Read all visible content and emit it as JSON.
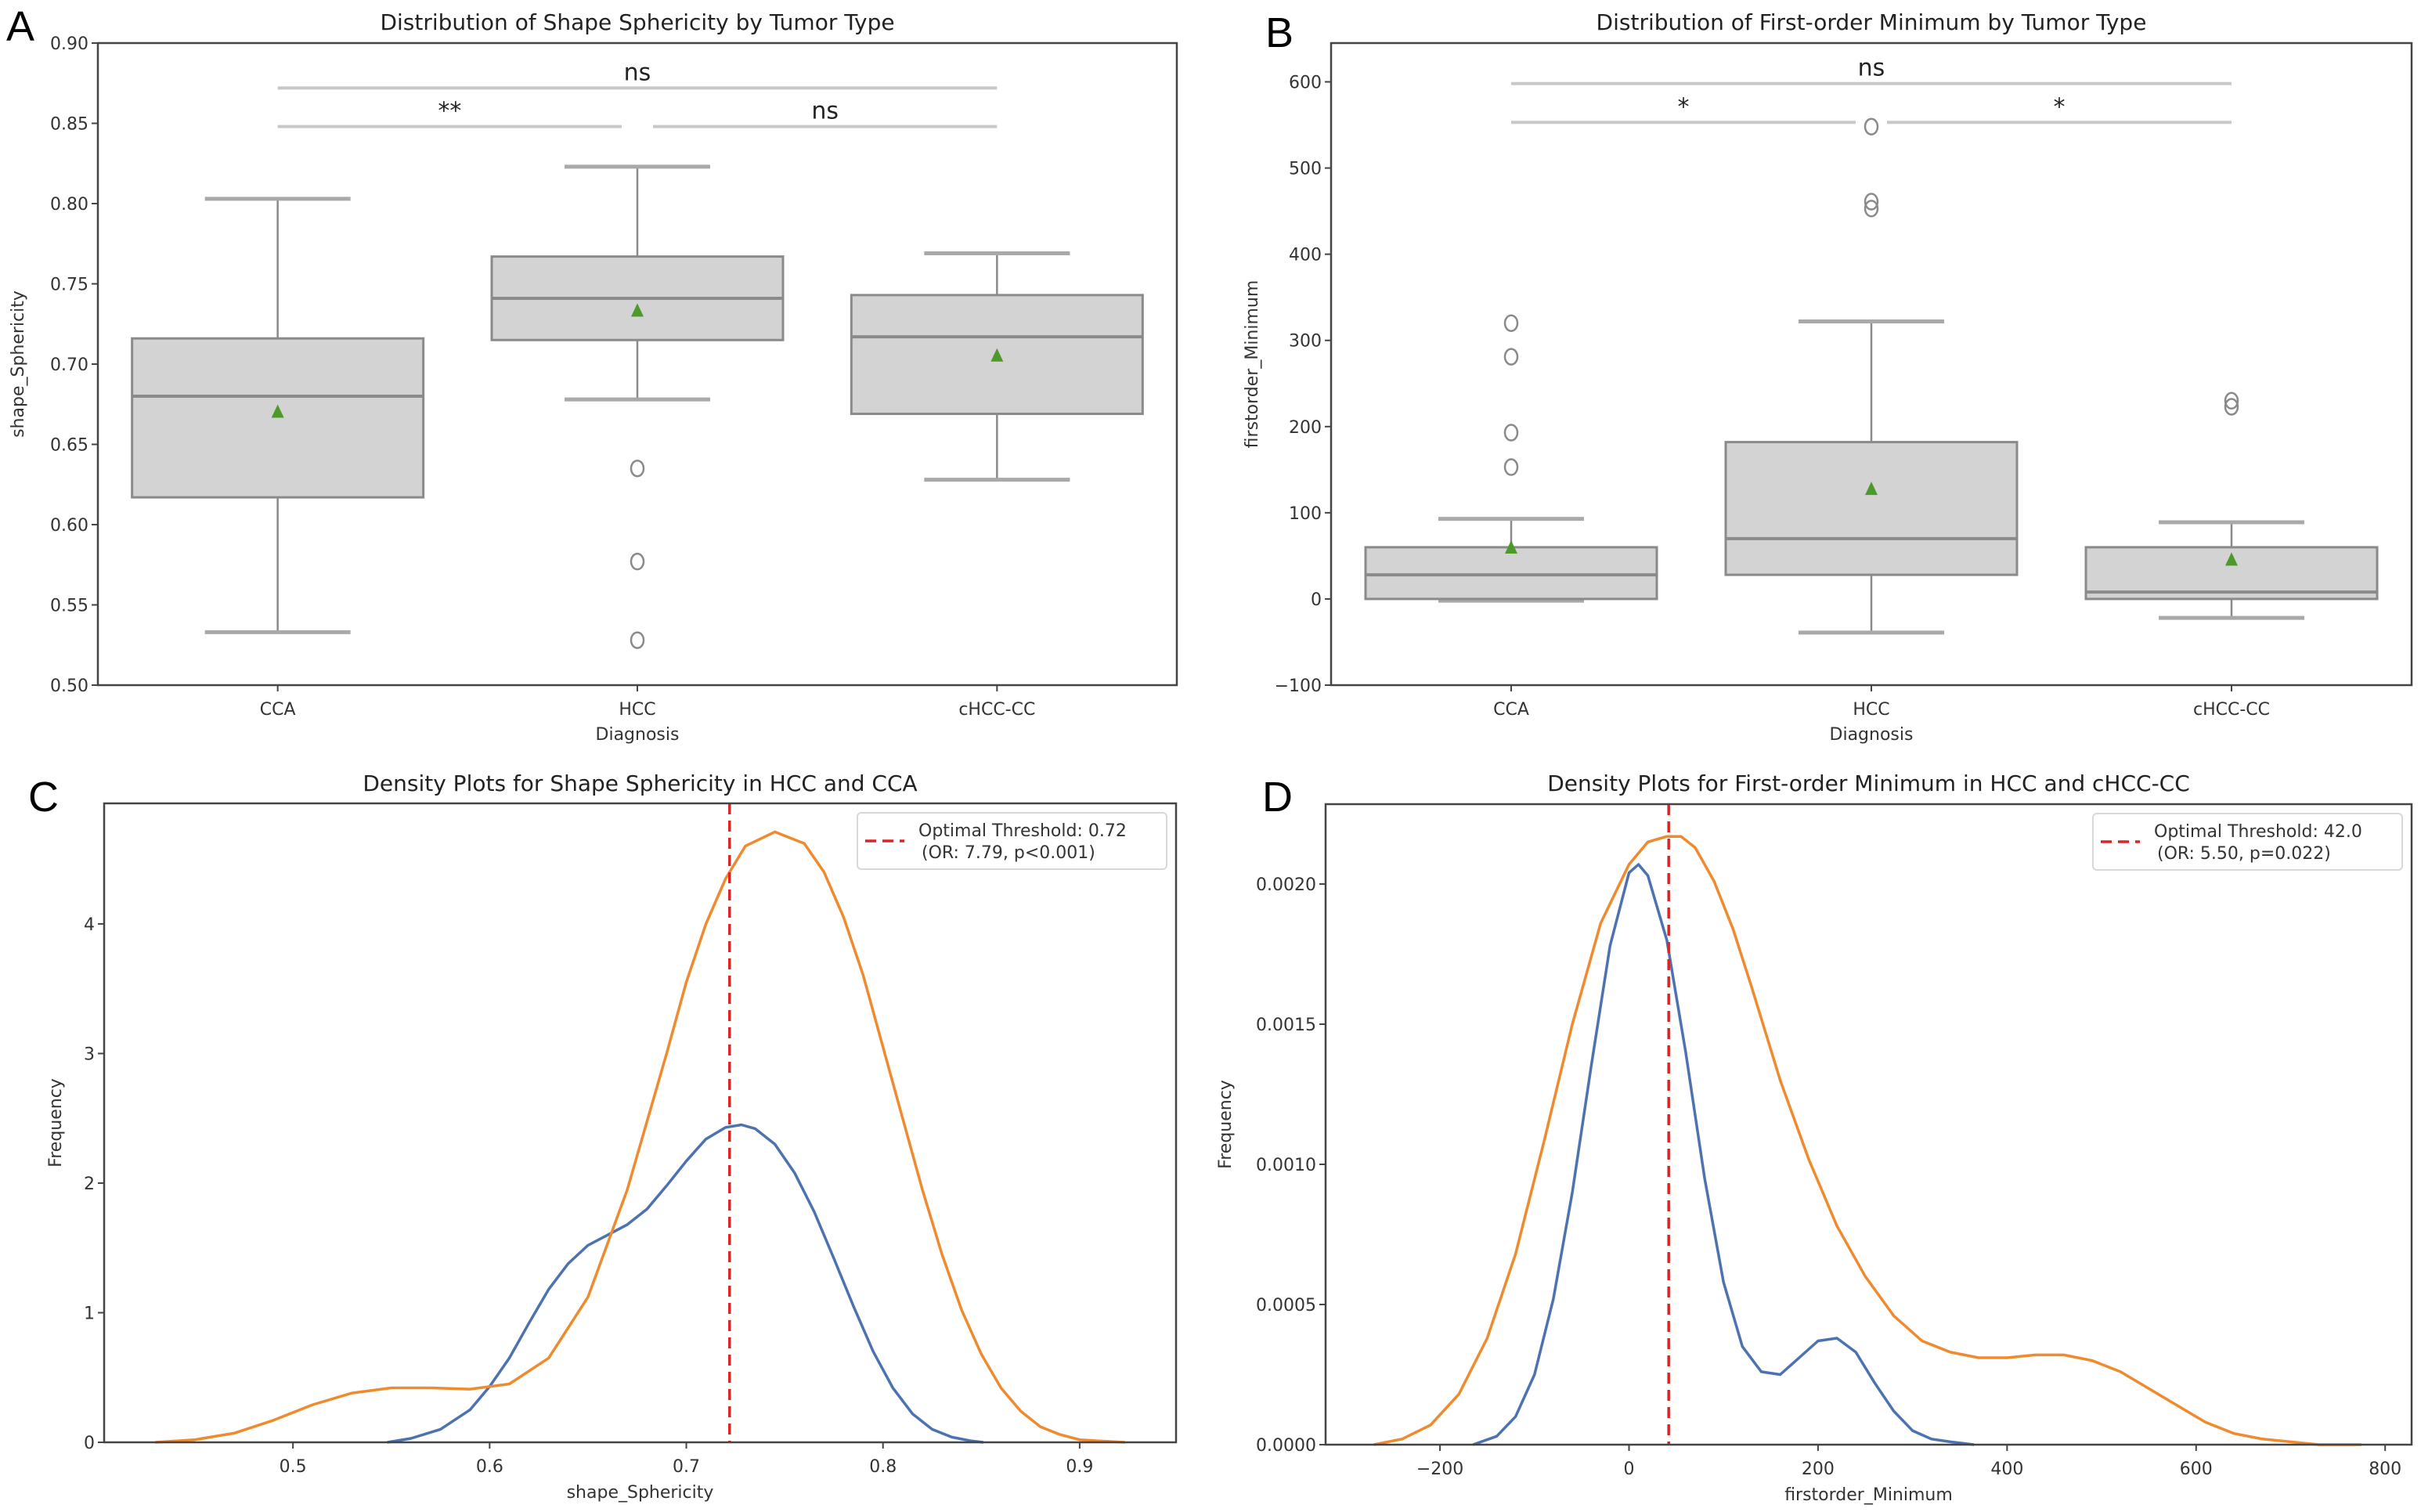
{
  "figure": {
    "panels": [
      {
        "letter": "A"
      },
      {
        "letter": "B"
      },
      {
        "letter": "C"
      },
      {
        "letter": "D"
      }
    ]
  },
  "chart_data": [
    {
      "type": "box",
      "panel": "A",
      "title": "Distribution of Shape Sphericity by Tumor Type",
      "xlabel": "Diagnosis",
      "ylabel": "shape_Sphericity",
      "ylim": [
        0.5,
        0.9
      ],
      "yticks": [
        0.5,
        0.55,
        0.6,
        0.65,
        0.7,
        0.75,
        0.8,
        0.85,
        0.9
      ],
      "ytick_labels": [
        "0.50",
        "0.55",
        "0.60",
        "0.65",
        "0.70",
        "0.75",
        "0.80",
        "0.85",
        "0.90"
      ],
      "categories": [
        "CCA",
        "HCC",
        "cHCC-CC"
      ],
      "boxes": [
        {
          "category": "CCA",
          "whisker_low": 0.533,
          "q1": 0.617,
          "median": 0.68,
          "q3": 0.716,
          "whisker_high": 0.803,
          "mean": 0.67,
          "outliers": []
        },
        {
          "category": "HCC",
          "whisker_low": 0.678,
          "q1": 0.715,
          "median": 0.741,
          "q3": 0.767,
          "whisker_high": 0.823,
          "mean": 0.733,
          "outliers": [
            0.635,
            0.577,
            0.528
          ]
        },
        {
          "category": "cHCC-CC",
          "whisker_low": 0.628,
          "q1": 0.669,
          "median": 0.717,
          "q3": 0.743,
          "whisker_high": 0.769,
          "mean": 0.705,
          "outliers": []
        }
      ],
      "significance": [
        {
          "from": "CCA",
          "to": "HCC",
          "level": 0.848,
          "label": "**"
        },
        {
          "from": "HCC",
          "to": "cHCC-CC",
          "level": 0.848,
          "label": "ns"
        },
        {
          "from": "CCA",
          "to": "cHCC-CC",
          "level": 0.872,
          "label": "ns"
        }
      ],
      "grid": false
    },
    {
      "type": "box",
      "panel": "B",
      "title": "Distribution of First-order Minimum by Tumor Type",
      "xlabel": "Diagnosis",
      "ylabel": "firstorder_Minimum",
      "ylim": [
        -100,
        645
      ],
      "yticks": [
        -100,
        0,
        100,
        200,
        300,
        400,
        500,
        600
      ],
      "ytick_labels": [
        "−100",
        "0",
        "100",
        "200",
        "300",
        "400",
        "500",
        "600"
      ],
      "categories": [
        "CCA",
        "HCC",
        "cHCC-CC"
      ],
      "boxes": [
        {
          "category": "CCA",
          "whisker_low": -2,
          "q1": 0,
          "median": 28,
          "q3": 60,
          "whisker_high": 93,
          "mean": 59,
          "outliers": [
            320,
            281,
            193,
            153
          ]
        },
        {
          "category": "HCC",
          "whisker_low": -39,
          "q1": 28,
          "median": 70,
          "q3": 182,
          "whisker_high": 322,
          "mean": 127,
          "outliers": [
            548,
            461,
            453
          ]
        },
        {
          "category": "cHCC-CC",
          "whisker_low": -22,
          "q1": 0,
          "median": 8,
          "q3": 60,
          "whisker_high": 89,
          "mean": 45,
          "outliers": [
            230,
            223
          ]
        }
      ],
      "significance": [
        {
          "from": "CCA",
          "to": "HCC",
          "level": 553,
          "label": "*"
        },
        {
          "from": "HCC",
          "to": "cHCC-CC",
          "level": 553,
          "label": "*"
        },
        {
          "from": "CCA",
          "to": "cHCC-CC",
          "level": 598,
          "label": "ns"
        }
      ],
      "grid": false
    },
    {
      "type": "line",
      "subtype": "density",
      "panel": "C",
      "title": "Density Plots for Shape Sphericity in HCC and CCA",
      "xlabel": "shape_Sphericity",
      "ylabel": "Frequency",
      "xlim": [
        0.404,
        0.949
      ],
      "ylim": [
        0,
        4.93
      ],
      "xticks": [
        0.5,
        0.6,
        0.7,
        0.8,
        0.9
      ],
      "xtick_labels": [
        "0.5",
        "0.6",
        "0.7",
        "0.8",
        "0.9"
      ],
      "yticks": [
        0,
        1,
        2,
        3,
        4
      ],
      "ytick_labels": [
        "0",
        "1",
        "2",
        "3",
        "4"
      ],
      "series": [
        {
          "name": "blue-density",
          "color": "#4c72b0",
          "x": [
            0.548,
            0.56,
            0.575,
            0.59,
            0.6,
            0.61,
            0.62,
            0.63,
            0.64,
            0.65,
            0.66,
            0.67,
            0.68,
            0.69,
            0.7,
            0.71,
            0.72,
            0.728,
            0.735,
            0.745,
            0.755,
            0.765,
            0.775,
            0.785,
            0.795,
            0.805,
            0.815,
            0.825,
            0.835,
            0.845,
            0.851
          ],
          "y": [
            0.0,
            0.03,
            0.1,
            0.25,
            0.43,
            0.65,
            0.92,
            1.18,
            1.38,
            1.52,
            1.6,
            1.68,
            1.8,
            1.98,
            2.17,
            2.34,
            2.43,
            2.45,
            2.42,
            2.3,
            2.08,
            1.78,
            1.42,
            1.05,
            0.7,
            0.42,
            0.22,
            0.1,
            0.04,
            0.01,
            0.0
          ]
        },
        {
          "name": "orange-density",
          "color": "#ef8a2e",
          "x": [
            0.43,
            0.45,
            0.47,
            0.49,
            0.51,
            0.53,
            0.55,
            0.57,
            0.59,
            0.61,
            0.63,
            0.65,
            0.67,
            0.69,
            0.7,
            0.71,
            0.72,
            0.73,
            0.745,
            0.76,
            0.77,
            0.78,
            0.79,
            0.8,
            0.81,
            0.82,
            0.83,
            0.84,
            0.85,
            0.86,
            0.87,
            0.88,
            0.89,
            0.9,
            0.91,
            0.923
          ],
          "y": [
            0.0,
            0.02,
            0.07,
            0.17,
            0.29,
            0.38,
            0.42,
            0.42,
            0.41,
            0.45,
            0.65,
            1.12,
            1.95,
            3.0,
            3.55,
            4.0,
            4.35,
            4.6,
            4.71,
            4.62,
            4.4,
            4.05,
            3.6,
            3.05,
            2.5,
            1.95,
            1.45,
            1.02,
            0.68,
            0.42,
            0.24,
            0.12,
            0.06,
            0.02,
            0.01,
            0.0
          ]
        }
      ],
      "threshold": {
        "x": 0.722,
        "color": "#d62728"
      },
      "legend": {
        "position": "top-right",
        "entries": [
          {
            "line1": "Optimal Threshold: 0.72",
            "line2": "(OR: 7.79, p<0.001)"
          }
        ]
      },
      "grid": false
    },
    {
      "type": "line",
      "subtype": "density",
      "panel": "D",
      "title": "Density Plots for First-order Minimum in HCC and cHCC-CC",
      "xlabel": "firstorder_Minimum",
      "ylabel": "Frequency",
      "xlim": [
        -321,
        828
      ],
      "ylim": [
        0,
        0.002285
      ],
      "xticks": [
        -200,
        0,
        200,
        400,
        600,
        800
      ],
      "xtick_labels": [
        "−200",
        "0",
        "200",
        "400",
        "600",
        "800"
      ],
      "yticks": [
        0,
        0.0005,
        0.001,
        0.0015,
        0.002
      ],
      "ytick_labels": [
        "0.0000",
        "0.0005",
        "0.0010",
        "0.0015",
        "0.0020"
      ],
      "series": [
        {
          "name": "blue-density",
          "color": "#4c72b0",
          "x": [
            -165,
            -140,
            -120,
            -100,
            -80,
            -60,
            -40,
            -20,
            0,
            10,
            20,
            40,
            60,
            80,
            100,
            120,
            140,
            160,
            180,
            200,
            220,
            240,
            260,
            280,
            300,
            320,
            340,
            365
          ],
          "y": [
            0.0,
            3e-05,
            0.0001,
            0.00025,
            0.00052,
            0.0009,
            0.00135,
            0.00178,
            0.00204,
            0.00207,
            0.00203,
            0.0018,
            0.0014,
            0.00095,
            0.00058,
            0.00035,
            0.00026,
            0.00025,
            0.00031,
            0.00037,
            0.00038,
            0.00033,
            0.00022,
            0.00012,
            5e-05,
            2e-05,
            1e-05,
            0.0
          ]
        },
        {
          "name": "orange-density",
          "color": "#ef8a2e",
          "x": [
            -270,
            -240,
            -210,
            -180,
            -150,
            -120,
            -90,
            -60,
            -30,
            0,
            20,
            40,
            55,
            70,
            90,
            110,
            130,
            160,
            190,
            220,
            250,
            280,
            310,
            340,
            370,
            400,
            430,
            460,
            490,
            520,
            550,
            580,
            610,
            640,
            670,
            700,
            730,
            775
          ],
          "y": [
            0.0,
            2e-05,
            7e-05,
            0.00018,
            0.00038,
            0.00068,
            0.00108,
            0.0015,
            0.00186,
            0.00207,
            0.00215,
            0.00217,
            0.00217,
            0.00213,
            0.00201,
            0.00184,
            0.00163,
            0.0013,
            0.00102,
            0.00078,
            0.0006,
            0.00046,
            0.00037,
            0.00033,
            0.00031,
            0.00031,
            0.00032,
            0.00032,
            0.0003,
            0.00026,
            0.0002,
            0.00014,
            8e-05,
            4e-05,
            2e-05,
            1e-05,
            0.0,
            0.0
          ]
        }
      ],
      "threshold": {
        "x": 42.0,
        "color": "#d62728"
      },
      "legend": {
        "position": "top-right",
        "entries": [
          {
            "line1": "Optimal Threshold: 42.0",
            "line2": "(OR: 5.50, p=0.022)"
          }
        ]
      },
      "grid": false
    }
  ]
}
